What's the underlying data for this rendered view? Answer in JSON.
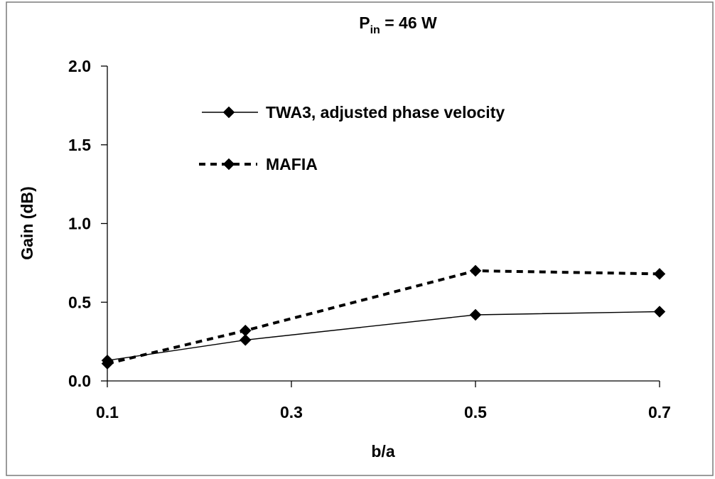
{
  "chart_data": {
    "type": "line",
    "title": "P",
    "title_subscript": "in",
    "title_suffix": " = 46 W",
    "xlabel": "b/a",
    "ylabel": "Gain (dB)",
    "xlim": [
      0.1,
      0.7
    ],
    "ylim": [
      0.0,
      2.0
    ],
    "x_ticks": [
      {
        "value": 0.1,
        "label": "0.1"
      },
      {
        "value": 0.3,
        "label": "0.3"
      },
      {
        "value": 0.5,
        "label": "0.5"
      },
      {
        "value": 0.7,
        "label": "0.7"
      }
    ],
    "y_ticks": [
      {
        "value": 0.0,
        "label": "0.0"
      },
      {
        "value": 0.5,
        "label": "0.5"
      },
      {
        "value": 1.0,
        "label": "1.0"
      },
      {
        "value": 1.5,
        "label": "1.5"
      },
      {
        "value": 2.0,
        "label": "2.0"
      }
    ],
    "grid": false,
    "legend_position": "top-center",
    "series": [
      {
        "name": "TWA3, adjusted phase velocity",
        "style": "solid",
        "marker": "diamond",
        "x": [
          0.1,
          0.25,
          0.5,
          0.7
        ],
        "y": [
          0.13,
          0.26,
          0.42,
          0.44
        ]
      },
      {
        "name": "MAFIA",
        "style": "dashed",
        "marker": "diamond",
        "x": [
          0.1,
          0.25,
          0.5,
          0.7
        ],
        "y": [
          0.11,
          0.32,
          0.7,
          0.68
        ]
      }
    ]
  },
  "colors": {
    "line": "#000000",
    "frame": "#7a7a7a",
    "background": "#ffffff"
  }
}
